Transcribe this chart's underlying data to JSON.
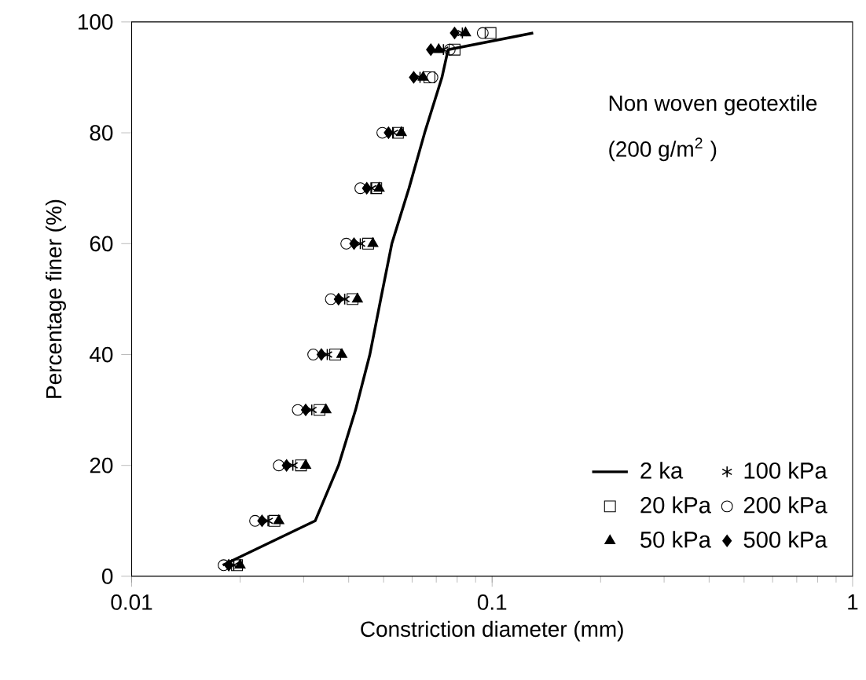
{
  "chart_data": {
    "type": "scatter",
    "xlabel": "Constriction diameter (mm)",
    "ylabel": "Percentage finer (%)",
    "log": "x",
    "xlim": [
      0.01,
      1
    ],
    "ylim": [
      0,
      100
    ],
    "xticks": [
      0.01,
      0.1,
      1
    ],
    "yticks": [
      0,
      20,
      40,
      60,
      80,
      100
    ],
    "legend": "bottom right",
    "annotations": [
      "Non woven geotextile",
      "(200 g/m$^{2}$ )"
    ],
    "series": [
      {
        "name": "2 ka",
        "type": "line",
        "color": "#000000",
        "marker": "none",
        "x": [
          0.0179,
          0.0323,
          0.0375,
          0.0418,
          0.0458,
          0.0491,
          0.0527,
          0.0588,
          0.065,
          0.0726,
          0.0755,
          0.13
        ],
        "values": [
          2,
          10,
          20,
          30,
          40,
          50,
          60,
          70,
          80,
          90,
          95,
          98
        ]
      },
      {
        "name": "20 kPa",
        "color": "#000000",
        "marker": "square",
        "x": [
          0.0196,
          0.0249,
          0.0295,
          0.0332,
          0.0367,
          0.041,
          0.0453,
          0.0477,
          0.0548,
          0.067,
          0.0787,
          0.099
        ],
        "values": [
          2,
          10,
          20,
          30,
          40,
          50,
          60,
          70,
          80,
          90,
          95,
          98
        ]
      },
      {
        "name": "50 kPa",
        "color": "#000000",
        "marker": "triangle",
        "x": [
          0.02,
          0.0256,
          0.0304,
          0.0346,
          0.0383,
          0.0423,
          0.0467,
          0.0486,
          0.056,
          0.0644,
          0.0711,
          0.0844
        ],
        "values": [
          2,
          10,
          20,
          30,
          40,
          50,
          60,
          70,
          80,
          90,
          95,
          98
        ]
      },
      {
        "name": "100 kPa",
        "color": "#000000",
        "marker": "cross",
        "x": [
          0.0192,
          0.0239,
          0.028,
          0.0316,
          0.0349,
          0.039,
          0.0431,
          0.0463,
          0.0532,
          0.0631,
          0.0733,
          0.0827
        ],
        "values": [
          2,
          10,
          20,
          30,
          40,
          50,
          60,
          70,
          80,
          90,
          95,
          98
        ]
      },
      {
        "name": "200 kPa",
        "color": "#000000",
        "marker": "circle",
        "x": [
          0.018,
          0.022,
          0.0256,
          0.0289,
          0.0319,
          0.0357,
          0.0394,
          0.0431,
          0.0496,
          0.0683,
          0.0763,
          0.0942
        ],
        "values": [
          2,
          10,
          20,
          30,
          40,
          50,
          60,
          70,
          80,
          90,
          95,
          98
        ]
      },
      {
        "name": "500 kPa",
        "color": "#000000",
        "marker": "diamond",
        "x": [
          0.0186,
          0.023,
          0.0269,
          0.0304,
          0.0336,
          0.0375,
          0.0414,
          0.0449,
          0.0516,
          0.0606,
          0.0676,
          0.0787
        ],
        "values": [
          2,
          10,
          20,
          30,
          40,
          50,
          60,
          70,
          80,
          90,
          95,
          98
        ]
      }
    ]
  }
}
